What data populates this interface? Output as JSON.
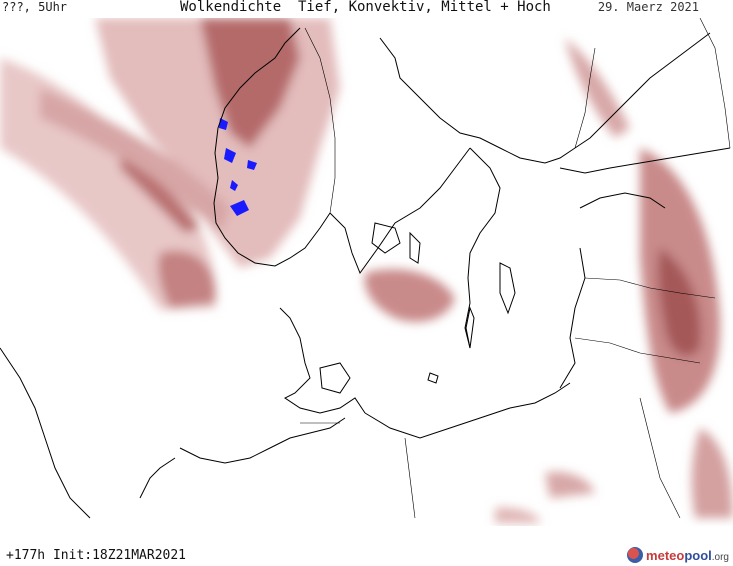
{
  "header": {
    "left_label": "???, 5Uhr",
    "title": "Wolkendichte  Tief, Konvektiv, Mittel + Hoch",
    "date": "29. Maerz 2021"
  },
  "footer": {
    "run_info": "+177h Init:18Z21MAR2021",
    "logo_a": "meteo",
    "logo_b": "pool",
    "logo_suffix": ".org"
  },
  "colors": {
    "cloud_light": "#e8c7c7",
    "cloud_mid": "#c98a8a",
    "cloud_dark": "#a55858",
    "coast": "#000000",
    "precip": "#1a1aff"
  }
}
